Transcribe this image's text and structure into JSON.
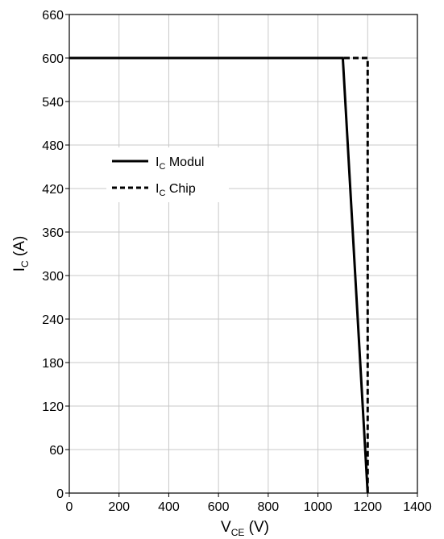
{
  "chart_data": {
    "type": "line",
    "xlabel": {
      "main": "V",
      "sub": "CE",
      "unit": " (V)"
    },
    "ylabel": {
      "main": "I",
      "sub": "C",
      "unit": " (A)"
    },
    "xlim": [
      0,
      1400
    ],
    "ylim": [
      0,
      660
    ],
    "x_ticks": [
      "0",
      "200",
      "400",
      "600",
      "800",
      "1000",
      "1200",
      "1400"
    ],
    "y_ticks": [
      "0",
      "60",
      "120",
      "180",
      "240",
      "300",
      "360",
      "420",
      "480",
      "540",
      "600",
      "660"
    ],
    "grid": true,
    "legend_position": "upper-left",
    "series": [
      {
        "name": {
          "main": "I",
          "sub": "C",
          "rest": " Modul"
        },
        "style": "solid",
        "x": [
          0,
          1100,
          1200
        ],
        "y": [
          600,
          600,
          0
        ]
      },
      {
        "name": {
          "main": "I",
          "sub": "C",
          "rest": " Chip"
        },
        "style": "dashed",
        "x": [
          0,
          1200,
          1200
        ],
        "y": [
          600,
          600,
          0
        ]
      }
    ],
    "colors": {
      "line": "#000000",
      "grid": "#c8c8c8",
      "axis": "#000000"
    }
  }
}
